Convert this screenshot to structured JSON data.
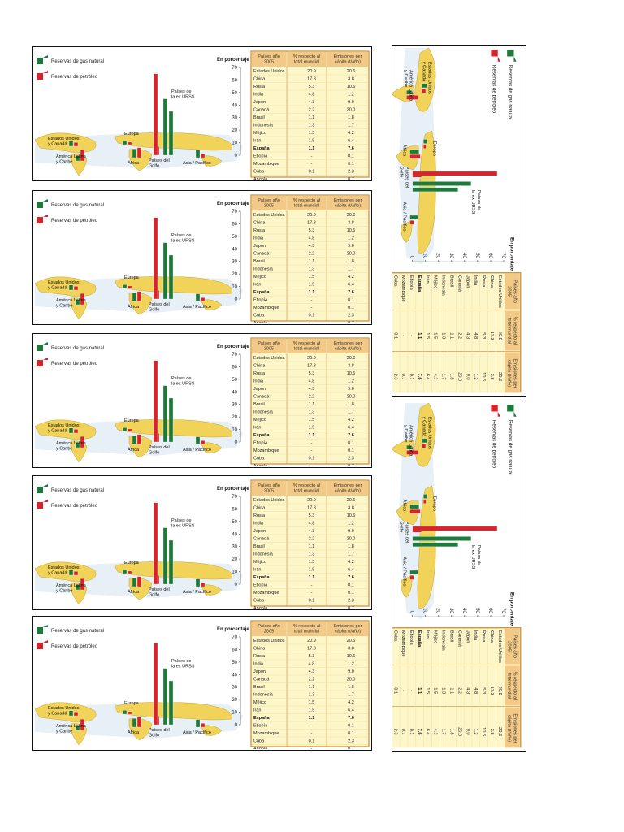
{
  "chart_data": {
    "type": "bar",
    "ylabel": "En porcentaje",
    "ylim": [
      0,
      70
    ],
    "y_ticks": [
      0,
      10,
      20,
      30,
      40,
      50,
      60,
      70
    ],
    "legend": [
      {
        "name": "Reservas de gas natural",
        "color": "#1e7a3a"
      },
      {
        "name": "Reservas de petróleo",
        "color": "#d8232a"
      }
    ],
    "categories": [
      "Estados Unidos y Canadá",
      "América Latina y Caribe",
      "Europa",
      "África",
      "Países de la ex URSS",
      "Países del Golfo",
      "Asia / Pacífico"
    ],
    "series": [
      {
        "name": "Reservas de gas natural",
        "values": [
          4,
          4,
          3,
          7,
          35,
          45,
          6
        ]
      },
      {
        "name": "Reservas de petróleo",
        "values": [
          3,
          9,
          2,
          8,
          7,
          65,
          3
        ]
      }
    ],
    "table": {
      "headers": [
        "Países año 2005",
        "% respecto al total mundial",
        "Emisiones per cápita (t/año)"
      ],
      "rows": [
        [
          "Estados Unidos",
          "20.9",
          "20.6"
        ],
        [
          "China",
          "17.3",
          "3.8"
        ],
        [
          "Rusia",
          "5.3",
          "10.6"
        ],
        [
          "India",
          "4.8",
          "1.2"
        ],
        [
          "Japón",
          "4.3",
          "9.0"
        ],
        [
          "Canadá",
          "2.2",
          "20.0"
        ],
        [
          "Brasil",
          "1.1",
          "1.8"
        ],
        [
          "Indonesia",
          "1.3",
          "1.7"
        ],
        [
          "Méjico",
          "1.5",
          "4.2"
        ],
        [
          "Irán",
          "1.5",
          "6.4"
        ],
        [
          "España",
          "1.1",
          "7.6"
        ],
        [
          "Etiopía",
          "-",
          "0.1"
        ],
        [
          "Mozambique",
          "-",
          "0.1"
        ],
        [
          "Cuba",
          "0.1",
          "2.3"
        ],
        [
          "Angola",
          "-",
          "0.7"
        ]
      ],
      "bold_row": "España"
    }
  },
  "colors": {
    "gas": "#1e7a3a",
    "oil": "#d8232a",
    "map": "#f2d35a",
    "sea": "#dbe9f2",
    "table_bg": "#fdf6c9",
    "table_head": "#f3c987",
    "table_border": "#d08a2c"
  }
}
